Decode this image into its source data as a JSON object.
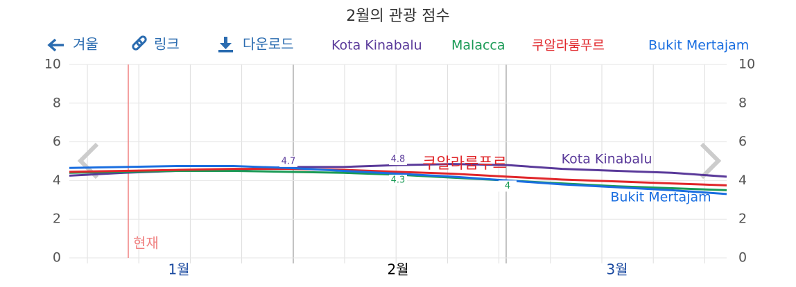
{
  "toolbar": [
    "겨울",
    "링크",
    "다운로드"
  ],
  "chart_data": {
    "type": "line",
    "title": "2월의 관광 점수",
    "categories": [
      null,
      null,
      "1월",
      null,
      null,
      null,
      "2월",
      null,
      null,
      null,
      "3월",
      null,
      null
    ],
    "series": [
      {
        "name": "Kota Kinabalu",
        "color": "#5a3a9a",
        "values": [
          4.25,
          4.4,
          4.5,
          4.55,
          4.7,
          4.7,
          4.8,
          4.85,
          4.8,
          4.6,
          4.5,
          4.4,
          4.2
        ]
      },
      {
        "name": "Malacca",
        "color": "#1a9a55",
        "values": [
          4.4,
          4.45,
          4.5,
          4.5,
          4.45,
          4.4,
          4.3,
          4.15,
          4.0,
          3.85,
          3.7,
          3.6,
          3.5
        ]
      },
      {
        "name": "쿠알라룸푸르",
        "color": "#e0262a",
        "values": [
          4.45,
          4.5,
          4.55,
          4.6,
          4.6,
          4.55,
          4.45,
          4.35,
          4.2,
          4.05,
          3.95,
          3.85,
          3.75
        ]
      },
      {
        "name": "Bukit Mertajam",
        "color": "#1a6ee0",
        "values": [
          4.65,
          4.7,
          4.75,
          4.75,
          4.65,
          4.5,
          4.35,
          4.2,
          4.0,
          3.8,
          3.65,
          3.5,
          3.3
        ]
      }
    ],
    "annotations": [
      "현재"
    ],
    "ylim": [
      0,
      10
    ],
    "yticks": [
      0,
      2,
      4,
      6,
      8,
      10
    ],
    "grid": true
  }
}
